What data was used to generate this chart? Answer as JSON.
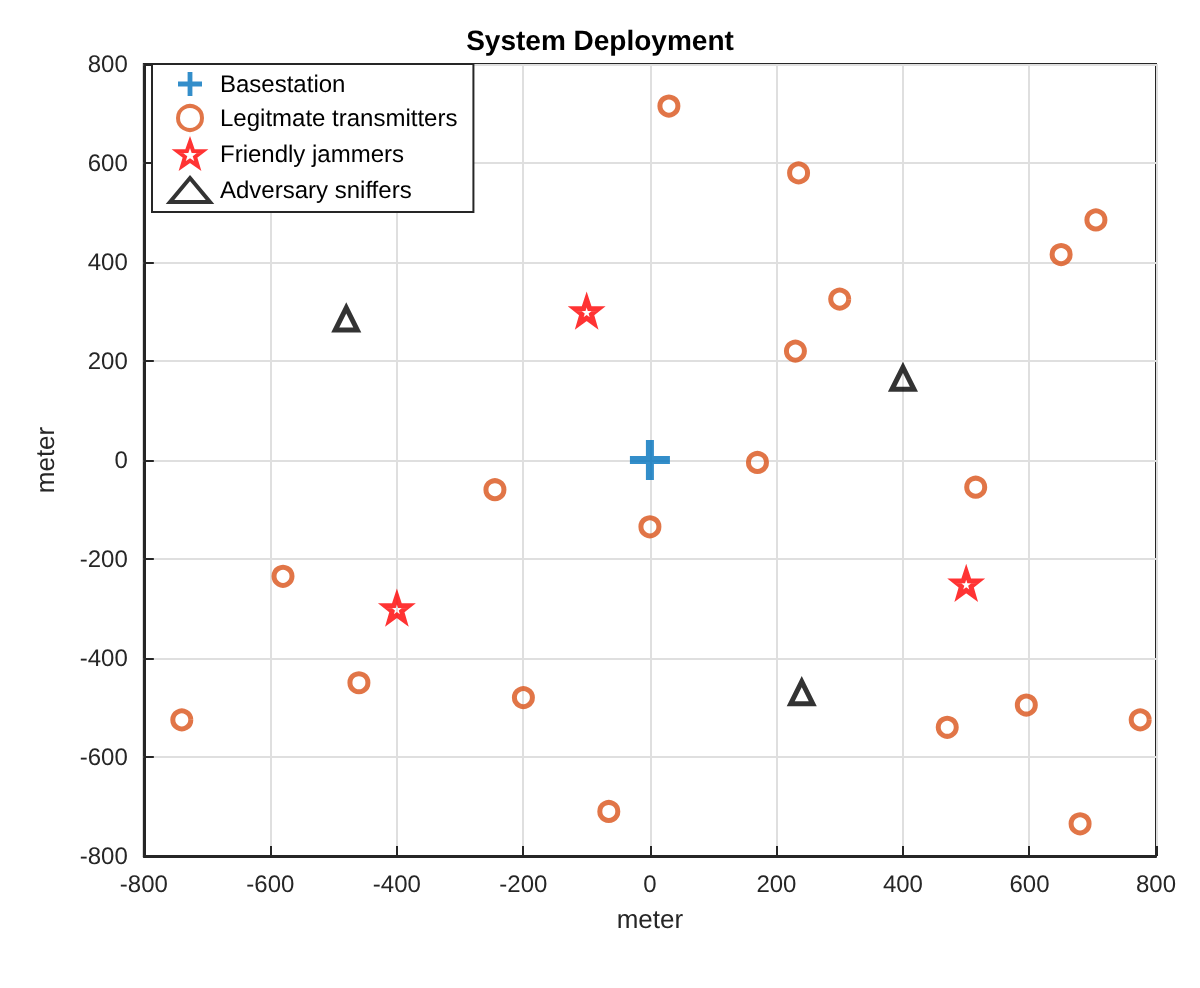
{
  "chart_data": {
    "type": "scatter",
    "title": "System Deployment",
    "xlabel": "meter",
    "ylabel": "meter",
    "xlim": [
      -800,
      800
    ],
    "ylim": [
      -800,
      800
    ],
    "xticks": [
      -800,
      -600,
      -400,
      -200,
      0,
      200,
      400,
      600,
      800
    ],
    "yticks": [
      -800,
      -600,
      -400,
      -200,
      0,
      200,
      400,
      600,
      800
    ],
    "grid": true,
    "legend": "top left",
    "series": [
      {
        "name": "Basestation",
        "color": "#0072bd",
        "marker": "cross",
        "x": [
          0
        ],
        "values": [
          0
        ]
      },
      {
        "name": "Legitmate transmitters",
        "color": "#d95319",
        "marker": "circle",
        "x": [
          30,
          235,
          705,
          650,
          300,
          230,
          170,
          515,
          0,
          -245,
          -580,
          -460,
          -740,
          -200,
          -65,
          470,
          595,
          680,
          775
        ],
        "values": [
          715,
          580,
          485,
          415,
          325,
          220,
          -5,
          -55,
          -135,
          -60,
          -235,
          -450,
          -525,
          -480,
          -710,
          -540,
          -495,
          -735,
          -525
        ]
      },
      {
        "name": "Friendly jammers",
        "color": "#ff0000",
        "marker": "star",
        "x": [
          -100,
          -400,
          500
        ],
        "values": [
          300,
          -300,
          -250
        ]
      },
      {
        "name": "Adversary sniffers",
        "color": "#000000",
        "marker": "triangle",
        "x": [
          -480,
          400,
          240
        ],
        "values": [
          285,
          165,
          -470
        ]
      }
    ]
  }
}
